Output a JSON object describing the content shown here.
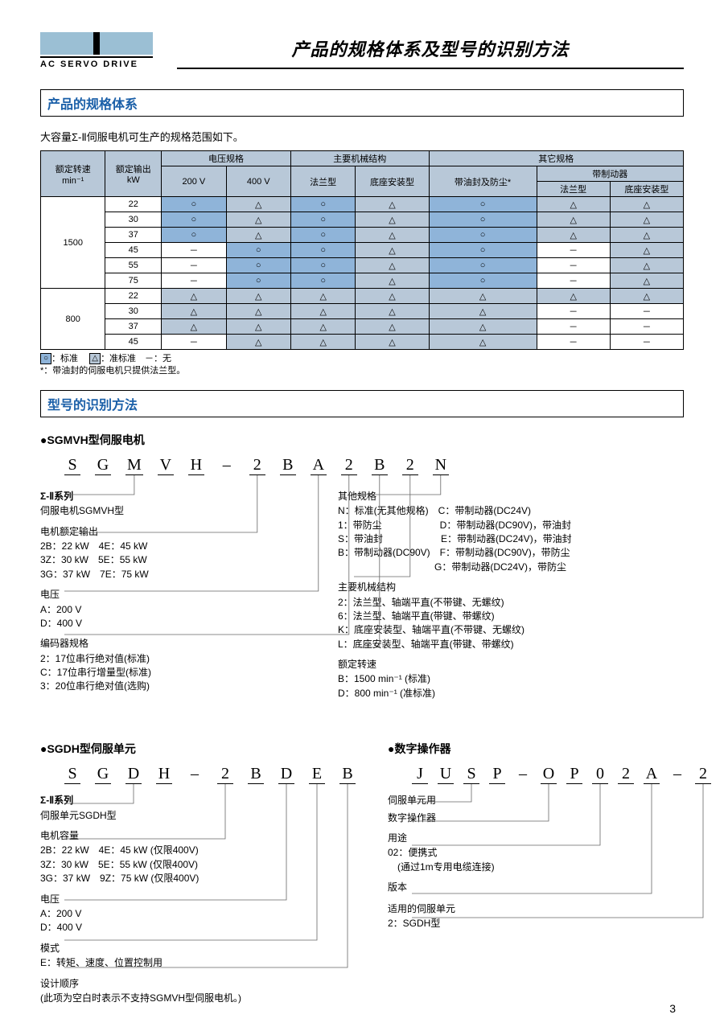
{
  "logo_text": "AC SERVO DRIVE",
  "page_title": "产品的规格体系及型号的识别方法",
  "section1": "产品的规格体系",
  "intro": "大容量Σ-Ⅱ伺服电机可生产的规格范围如下。",
  "table": {
    "head_top": [
      "额定转速",
      "额定输出",
      "电压规格",
      "主要机械结构",
      "其它规格"
    ],
    "head_sub_voltage": [
      "200 V",
      "400 V"
    ],
    "head_sub_mech": [
      "法兰型",
      "底座安装型"
    ],
    "head_sub_other": [
      "带油封及防尘*",
      "带制动器"
    ],
    "head_sub_brake": [
      "法兰型",
      "底座安装型"
    ],
    "unit_speed": "min⁻¹",
    "unit_power": "kW",
    "rows": [
      {
        "speed": "1500",
        "kw": "22",
        "cells": [
          "○",
          "△",
          "○",
          "△",
          "○",
          "△",
          "△"
        ],
        "bg": [
          "b",
          "g",
          "b",
          "g",
          "b",
          "g",
          "g"
        ]
      },
      {
        "speed": "",
        "kw": "30",
        "cells": [
          "○",
          "△",
          "○",
          "△",
          "○",
          "△",
          "△"
        ],
        "bg": [
          "b",
          "g",
          "b",
          "g",
          "b",
          "g",
          "g"
        ]
      },
      {
        "speed": "",
        "kw": "37",
        "cells": [
          "○",
          "△",
          "○",
          "△",
          "○",
          "△",
          "△"
        ],
        "bg": [
          "b",
          "g",
          "b",
          "g",
          "b",
          "g",
          "g"
        ]
      },
      {
        "speed": "",
        "kw": "45",
        "cells": [
          "－",
          "○",
          "○",
          "△",
          "○",
          "－",
          "△"
        ],
        "bg": [
          "w",
          "b",
          "b",
          "g",
          "b",
          "w",
          "g"
        ]
      },
      {
        "speed": "",
        "kw": "55",
        "cells": [
          "－",
          "○",
          "○",
          "△",
          "○",
          "－",
          "△"
        ],
        "bg": [
          "w",
          "b",
          "b",
          "g",
          "b",
          "w",
          "g"
        ]
      },
      {
        "speed": "",
        "kw": "75",
        "cells": [
          "－",
          "○",
          "○",
          "△",
          "○",
          "－",
          "△"
        ],
        "bg": [
          "w",
          "b",
          "b",
          "g",
          "b",
          "w",
          "g"
        ]
      },
      {
        "speed": "800",
        "kw": "22",
        "cells": [
          "△",
          "△",
          "△",
          "△",
          "△",
          "△",
          "△"
        ],
        "bg": [
          "g",
          "g",
          "g",
          "g",
          "g",
          "g",
          "g"
        ]
      },
      {
        "speed": "",
        "kw": "30",
        "cells": [
          "△",
          "△",
          "△",
          "△",
          "△",
          "－",
          "－"
        ],
        "bg": [
          "g",
          "g",
          "g",
          "g",
          "g",
          "w",
          "w"
        ]
      },
      {
        "speed": "",
        "kw": "37",
        "cells": [
          "△",
          "△",
          "△",
          "△",
          "△",
          "－",
          "－"
        ],
        "bg": [
          "g",
          "g",
          "g",
          "g",
          "g",
          "w",
          "w"
        ]
      },
      {
        "speed": "",
        "kw": "45",
        "cells": [
          "－",
          "△",
          "△",
          "△",
          "△",
          "－",
          "－"
        ],
        "bg": [
          "w",
          "g",
          "g",
          "g",
          "g",
          "w",
          "w"
        ]
      }
    ]
  },
  "legend_line1": "：标准　",
  "legend_tri": "：准标准　－：无",
  "legend_line2": "*：带油封的伺服电机只提供法兰型。",
  "section2": "型号的识别方法",
  "motor_heading": "●SGMVH型伺服电机",
  "motor_letters": [
    "S",
    "G",
    "M",
    "V",
    "H",
    "–",
    "2",
    "B",
    "A",
    "2",
    "B",
    "2",
    "N"
  ],
  "motor": {
    "series_title": "Σ-Ⅱ系列",
    "series_sub": "伺服电机SGMVH型",
    "power_title": "电机额定输出",
    "power_rows": [
      "2B：22 kW　4E：45 kW",
      "3Z：30 kW　5E：55 kW",
      "3G：37 kW　7E：75 kW"
    ],
    "voltage_title": "电压",
    "voltage_rows": [
      "A：200 V",
      "D：400 V"
    ],
    "encoder_title": "编码器规格",
    "encoder_rows": [
      "2：17位串行绝对值(标准)",
      "C：17位串行增量型(标准)",
      "3：20位串行绝对值(选购)"
    ],
    "other_title": "其他规格",
    "other_rows": [
      "N：标准(无其他规格)　C：带制动器(DC24V)",
      "1：带防尘　　　　　　D：带制动器(DC90V)，带油封",
      "S：带油封　　　　　　E：带制动器(DC24V)，带油封",
      "B：带制动器(DC90V)　F：带制动器(DC90V)，带防尘",
      "　　　　　　　　　　G：带制动器(DC24V)，带防尘"
    ],
    "mech_title": "主要机械结构",
    "mech_rows": [
      "2：法兰型、轴端平直(不带键、无螺纹)",
      "6：法兰型、轴端平直(带键、带螺纹)",
      "K：底座安装型、轴端平直(不带键、无螺纹)",
      "L：底座安装型、轴端平直(带键、带螺纹)"
    ],
    "speed_title": "额定转速",
    "speed_rows": [
      "B：1500 min⁻¹ (标准)",
      "D：800 min⁻¹ (准标准)"
    ]
  },
  "unit_heading": "●SGDH型伺服单元",
  "unit_letters": [
    "S",
    "G",
    "D",
    "H",
    "–",
    "2",
    "B",
    "D",
    "E",
    "B"
  ],
  "unit": {
    "series_title": "Σ-Ⅱ系列",
    "series_sub": "伺服单元SGDH型",
    "cap_title": "电机容量",
    "cap_rows": [
      "2B：22 kW　4E：45 kW (仅限400V)",
      "3Z：30 kW　5E：55 kW (仅限400V)",
      "3G：37 kW　9Z：75 kW (仅限400V)"
    ],
    "voltage_title": "电压",
    "voltage_rows": [
      "A：200 V",
      "D：400 V"
    ],
    "mode_title": "模式",
    "mode_rows": [
      "E：转矩、速度、位置控制用"
    ],
    "design_title": "设计顺序",
    "design_rows": [
      "(此项为空白时表示不支持SGMVH型伺服电机。)"
    ]
  },
  "op_heading": "●数字操作器",
  "op_letters": [
    "J",
    "U",
    "S",
    "P",
    "–",
    "O",
    "P",
    "0",
    "2",
    "A",
    "–",
    "2"
  ],
  "op": {
    "r1": "伺服单元用",
    "r2": "数字操作器",
    "use_title": "用途",
    "use_rows": [
      "02：便携式",
      "　(通过1m专用电缆连接)"
    ],
    "ver_title": "版本",
    "app_title": "适用的伺服单元",
    "app_rows": [
      "2：SGDH型"
    ]
  },
  "page_number": "3",
  "colors": {
    "blue_cell": "#8fb4d9",
    "grey_cell": "#b8c8d8",
    "header_blue": "#1a5fa8",
    "line": "#666"
  }
}
